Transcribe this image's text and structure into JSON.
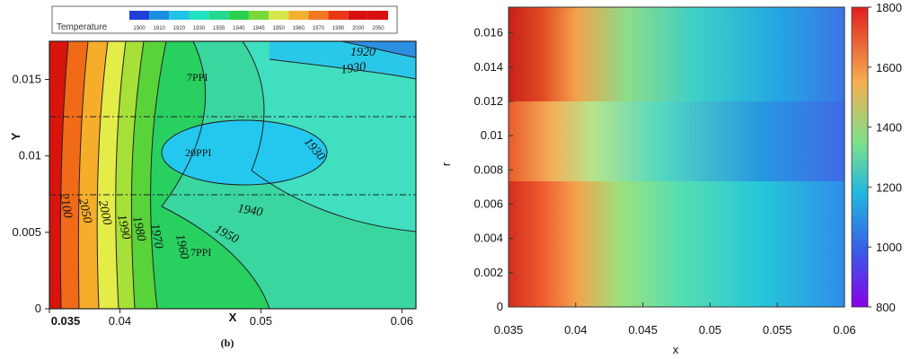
{
  "colors": {
    "ramp": [
      "#1f3fd8",
      "#1b8ee0",
      "#20c4e6",
      "#22e0c4",
      "#24d890",
      "#28d050",
      "#7ad83a",
      "#d8e84a",
      "#f0b030",
      "#f07820",
      "#e83818",
      "#d81010"
    ],
    "heat": [
      "#d32f1f",
      "#f3a24a",
      "#7fdc8e",
      "#20c0d8",
      "#2a8ae6",
      "#5a48e8"
    ]
  },
  "chart_data": [
    {
      "type": "heatmap",
      "panel_label": "(b)",
      "xlabel": "X",
      "ylabel": "Y",
      "xlim": [
        0.035,
        0.061
      ],
      "ylim": [
        0,
        0.0175
      ],
      "x_ticks": [
        "0.035",
        "0.04",
        "0.05",
        "0.06"
      ],
      "y_ticks": [
        "0",
        "0.005",
        "0.01",
        "0.015"
      ],
      "legend_title": "Temperature",
      "legend_values": [
        "1900",
        "1910",
        "1920",
        "1930",
        "1935",
        "1940",
        "1945",
        "1950",
        "1960",
        "1970",
        "1990",
        "2000",
        "2050"
      ],
      "contour_labels": [
        "1920",
        "1930",
        "1930",
        "1940",
        "1950",
        "1960",
        "1970",
        "1980",
        "1990",
        "2000",
        "2050",
        "2100"
      ],
      "zone_labels": [
        "7PPI",
        "20PPI",
        "7PPI"
      ],
      "zone_boundaries_y": [
        0.0075,
        0.0127
      ]
    },
    {
      "type": "heatmap",
      "xlabel": "x",
      "ylabel": "r",
      "xlim": [
        0.035,
        0.06
      ],
      "ylim": [
        0,
        0.0175
      ],
      "x_ticks": [
        "0.035",
        "0.04",
        "0.045",
        "0.05",
        "0.055",
        "0.06"
      ],
      "y_ticks": [
        "0",
        "0.002",
        "0.004",
        "0.006",
        "0.008",
        "0.01",
        "0.012",
        "0.014",
        "0.016"
      ],
      "colorbar_range": [
        800,
        1800
      ],
      "colorbar_ticks": [
        "800",
        "1000",
        "1200",
        "1400",
        "1600",
        "1800"
      ]
    }
  ]
}
